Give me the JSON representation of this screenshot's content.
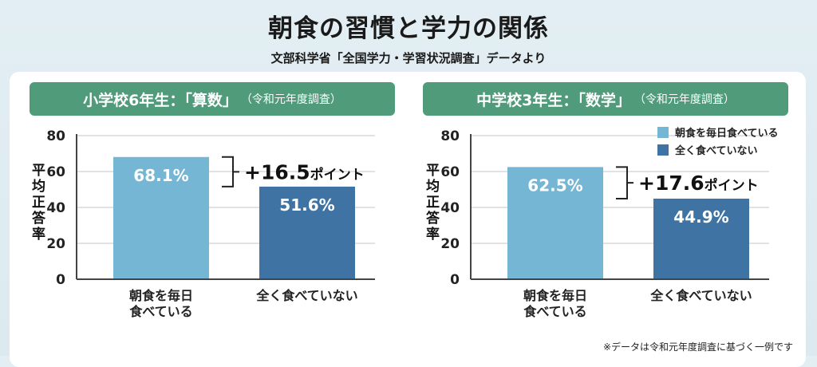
{
  "title": "朝食の習慣と学力の関係",
  "subtitle": "文部科学省「全国学力・学習状況調査」データより",
  "note": "※データは令和元年度調査に基づく一例です",
  "colors": {
    "daily": "#74b6d3",
    "never": "#3f73a3",
    "header": "#4f9b7a"
  },
  "chart_data": [
    {
      "type": "bar",
      "title": "小学校6年生：「算数」",
      "title_note": "（令和元年度調査）",
      "ylabel": "平均正答率",
      "ylim": [
        0,
        80
      ],
      "yticks": [
        0,
        20,
        40,
        60,
        80
      ],
      "categories": [
        "朝食を毎日食べている",
        "全く食べていない"
      ],
      "category_lines": [
        [
          "朝食を毎日",
          "食べている"
        ],
        [
          "全く食べていない"
        ]
      ],
      "values": [
        68.1,
        51.6
      ],
      "value_labels": [
        "68.1%",
        "51.6%"
      ],
      "difference_label": "+16.5",
      "difference_unit": "ポイント",
      "legend": null
    },
    {
      "type": "bar",
      "title": "中学校3年生：「数学」",
      "title_note": "（令和元年度調査）",
      "ylabel": "平均正答率",
      "ylim": [
        0,
        80
      ],
      "yticks": [
        0,
        20,
        40,
        60,
        80
      ],
      "categories": [
        "朝食を毎日食べている",
        "全く食べていない"
      ],
      "category_lines": [
        [
          "朝食を毎日",
          "食べている"
        ],
        [
          "全く食べていない"
        ]
      ],
      "values": [
        62.5,
        44.9
      ],
      "value_labels": [
        "62.5%",
        "44.9%"
      ],
      "difference_label": "+17.6",
      "difference_unit": "ポイント",
      "legend": [
        "朝食を毎日食べている",
        "全く食べていない"
      ],
      "legend_placement": "top-right"
    }
  ]
}
